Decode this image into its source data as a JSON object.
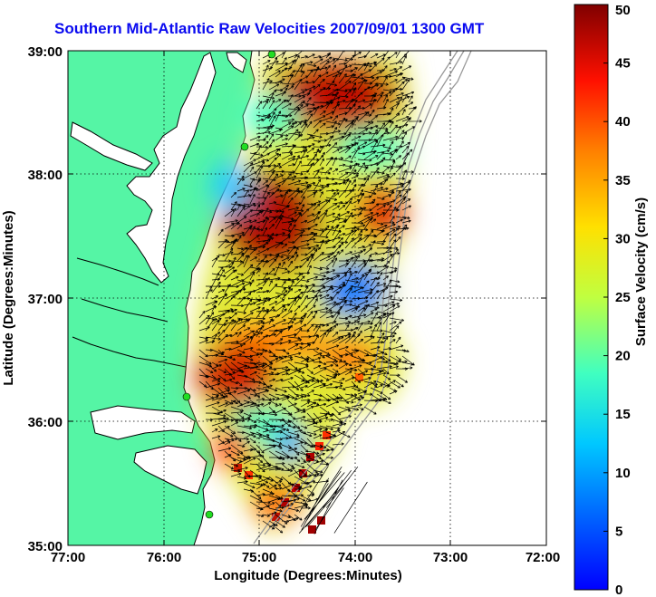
{
  "title": "Southern Mid-Atlantic Raw Velocities 2007/09/01 1300 GMT",
  "map": {
    "xlabel": "Longitude (Degrees:Minutes)",
    "ylabel": "Latitude (Degrees:Minutes)",
    "x_ticks": [
      "77:00",
      "76:00",
      "75:00",
      "74:00",
      "73:00",
      "72:00"
    ],
    "y_ticks": [
      "39:00",
      "38:00",
      "37:00",
      "36:00",
      "35:00"
    ],
    "lon_range": [
      -77,
      -72
    ],
    "lat_range": [
      35,
      39
    ],
    "land_color": "#55f5a5",
    "coast_color": "#000000",
    "station_color": "#22dd22"
  },
  "colorbar": {
    "label": "Surface Velocity (cm/s)",
    "ticks": [
      "0",
      "5",
      "10",
      "15",
      "20",
      "25",
      "30",
      "35",
      "40",
      "45",
      "50"
    ],
    "range": [
      0,
      50
    ],
    "colormap": "jet"
  }
}
